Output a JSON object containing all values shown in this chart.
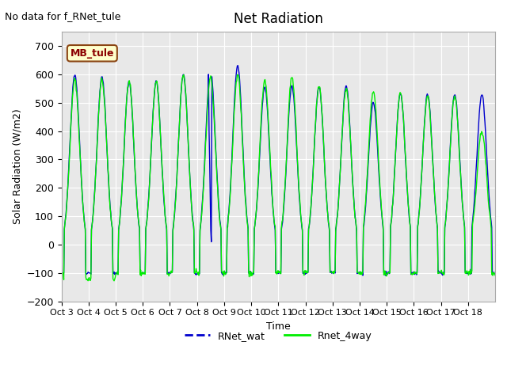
{
  "title": "Net Radiation",
  "no_data_text": "No data for f_RNet_tule",
  "xlabel": "Time",
  "ylabel": "Solar Radiation (W/m2)",
  "ylim": [
    -200,
    750
  ],
  "yticks": [
    -200,
    -100,
    0,
    100,
    200,
    300,
    400,
    500,
    600,
    700
  ],
  "x_tick_labels": [
    "Oct 3",
    "Oct 4",
    "Oct 5",
    "Oct 6",
    "Oct 7",
    "Oct 8",
    "Oct 9",
    "Oct 10",
    "Oct 11",
    "Oct 12",
    "Oct 13",
    "Oct 14",
    "Oct 15",
    "Oct 16",
    "Oct 17",
    "Oct 18"
  ],
  "legend_labels": [
    "RNet_wat",
    "Rnet_4way"
  ],
  "legend_colors": [
    "#0000cd",
    "#00ee00"
  ],
  "plot_bg_color": "#e8e8e8",
  "grid_color": "white",
  "box_label": "MB_tule",
  "box_facecolor": "#ffffcc",
  "box_edgecolor": "#8b4513",
  "peaks_blue": [
    600,
    590,
    575,
    575,
    600,
    620,
    630,
    555,
    560,
    555,
    560,
    500,
    535,
    530,
    530,
    530
  ],
  "peaks_green": [
    580,
    580,
    580,
    575,
    600,
    590,
    600,
    580,
    590,
    560,
    550,
    540,
    535,
    525,
    520,
    400
  ]
}
